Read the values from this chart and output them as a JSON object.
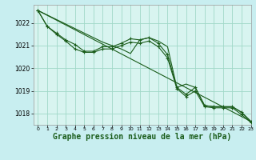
{
  "background_color": "#c8eef0",
  "plot_bg": "#d8f4f0",
  "grid_color": "#a0d8c8",
  "line_color": "#1a5c1a",
  "xlabel": "Graphe pression niveau de la mer (hPa)",
  "xlabel_fontsize": 7,
  "xlim": [
    -0.5,
    23
  ],
  "ylim": [
    1017.5,
    1022.8
  ],
  "yticks": [
    1018,
    1019,
    1020,
    1021,
    1022
  ],
  "xticks": [
    0,
    1,
    2,
    3,
    4,
    5,
    6,
    7,
    8,
    9,
    10,
    11,
    12,
    13,
    14,
    15,
    16,
    17,
    18,
    19,
    20,
    21,
    22,
    23
  ],
  "series1_nomarker": {
    "x": [
      0,
      1,
      2,
      3,
      4,
      5,
      6,
      7,
      8,
      9,
      10,
      11,
      12,
      13,
      14,
      15,
      16,
      17,
      18,
      19,
      20,
      21,
      22,
      23
    ],
    "y": [
      1022.55,
      1022.35,
      1022.15,
      1021.95,
      1021.75,
      1021.55,
      1021.35,
      1021.15,
      1021.0,
      1020.85,
      1020.65,
      1021.25,
      1021.35,
      1021.2,
      1020.95,
      1019.15,
      1019.3,
      1019.15,
      1018.35,
      1018.3,
      1018.3,
      1018.3,
      1018.05,
      1017.65
    ]
  },
  "series2_marker": {
    "x": [
      0,
      1,
      2,
      3,
      4,
      5,
      6,
      7,
      8,
      9,
      10,
      11,
      12,
      13,
      14,
      15,
      16,
      17,
      18,
      19,
      20,
      21,
      22,
      23
    ],
    "y": [
      1022.55,
      1021.85,
      1021.55,
      1021.25,
      1021.05,
      1020.75,
      1020.75,
      1020.95,
      1020.95,
      1021.1,
      1021.3,
      1021.25,
      1021.35,
      1021.1,
      1020.6,
      1019.15,
      1018.85,
      1019.15,
      1018.35,
      1018.3,
      1018.3,
      1018.3,
      1018.05,
      1017.65
    ]
  },
  "series3_marker": {
    "x": [
      0,
      1,
      2,
      3,
      4,
      5,
      6,
      7,
      8,
      9,
      10,
      11,
      12,
      13,
      14,
      15,
      16,
      17,
      18,
      19,
      20,
      21,
      22,
      23
    ],
    "y": [
      1022.55,
      1021.85,
      1021.5,
      1021.2,
      1020.85,
      1020.7,
      1020.7,
      1020.85,
      1020.85,
      1021.0,
      1021.15,
      1021.1,
      1021.2,
      1020.95,
      1020.45,
      1019.1,
      1018.75,
      1019.0,
      1018.3,
      1018.25,
      1018.25,
      1018.25,
      1017.95,
      1017.6
    ]
  },
  "series4_straight": {
    "x": [
      0,
      23
    ],
    "y": [
      1022.55,
      1017.65
    ]
  }
}
